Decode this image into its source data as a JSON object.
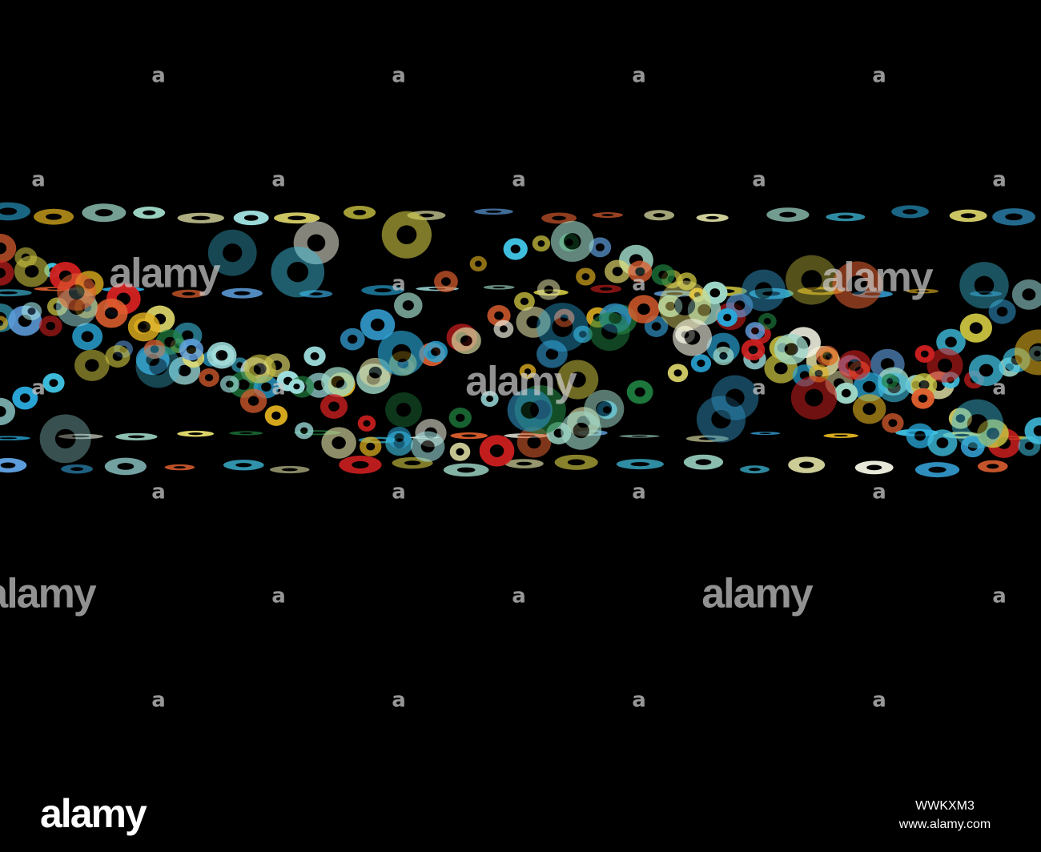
{
  "watermark": {
    "logo": "alamy",
    "mark": "a"
  },
  "footer": {
    "logo": "alamy",
    "image_id": "WWKXM3",
    "url": "www.alamy.com"
  }
}
